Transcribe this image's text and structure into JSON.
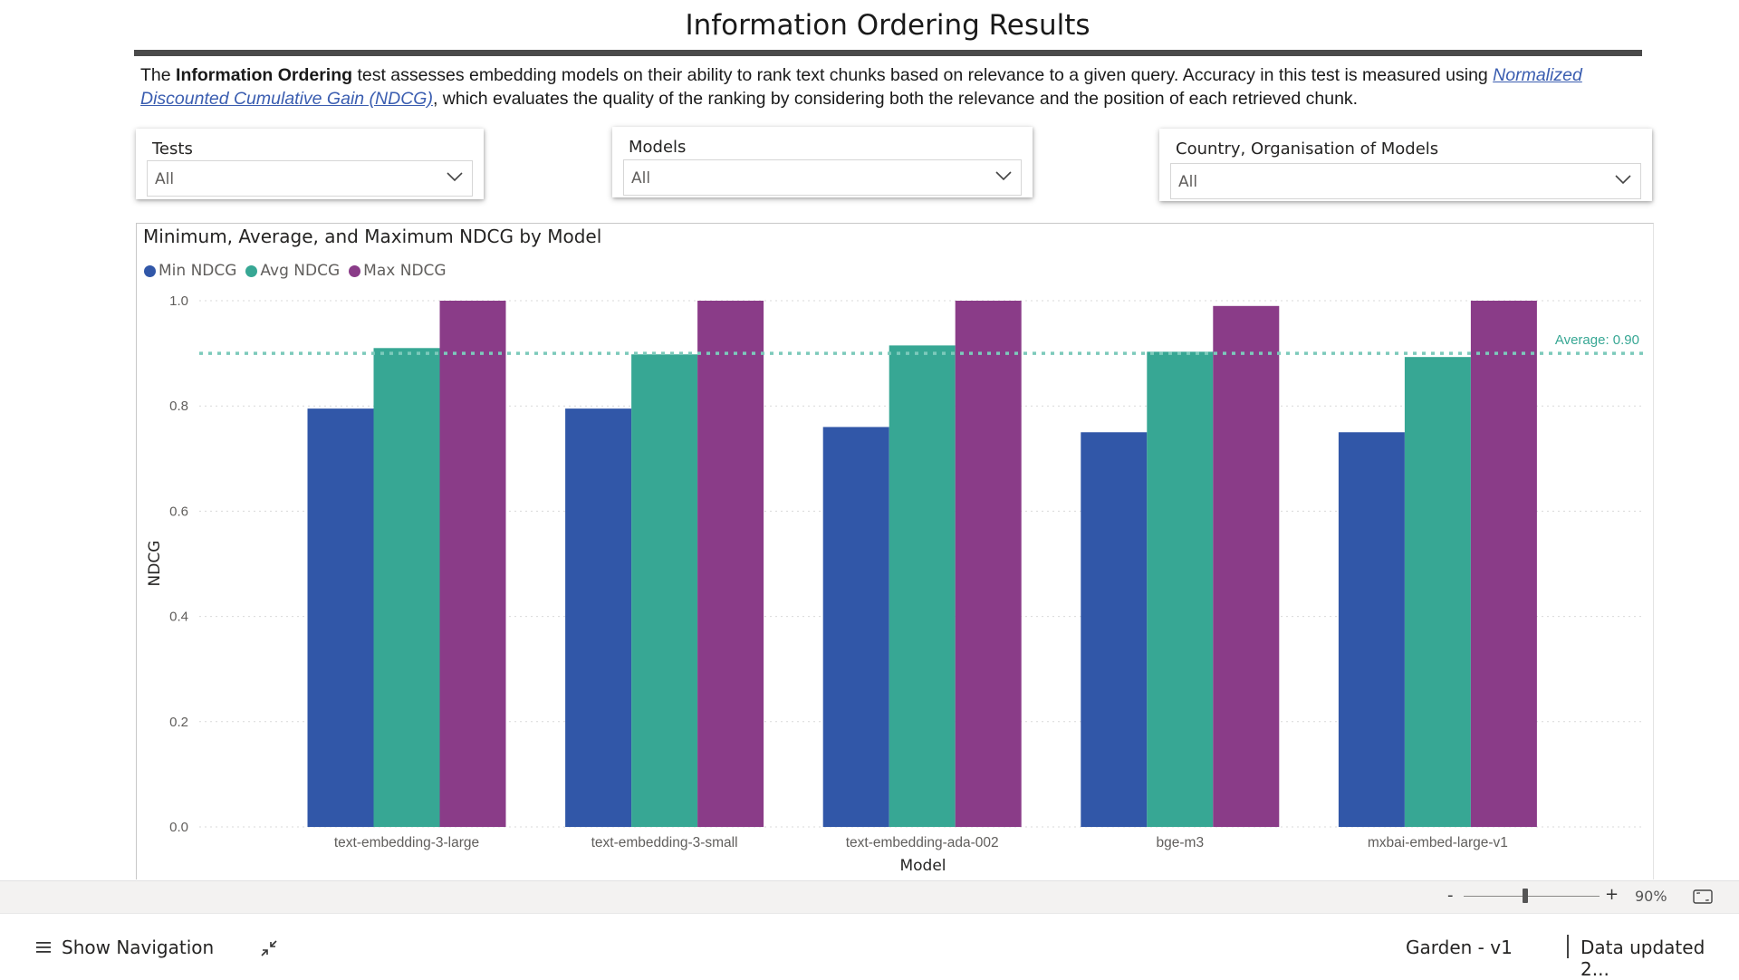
{
  "report": {
    "title": "Information Ordering Results",
    "description": {
      "part1": "The ",
      "bold": "Information Ordering",
      "part2": " test assesses embedding models on their ability to rank text chunks based on relevance to a given query. Accuracy in this test is measured using ",
      "link": "Normalized Discounted Cumulative Gain (NDCG)",
      "part3": ", which evaluates the quality of the ranking by considering both the relevance and the position of each retrieved chunk."
    }
  },
  "slicers": [
    {
      "label": "Tests",
      "value": "All"
    },
    {
      "label": "Models",
      "value": "All"
    },
    {
      "label": "Country, Organisation of Models",
      "value": "All"
    }
  ],
  "chart_data": {
    "type": "bar",
    "title": "Minimum, Average, and Maximum NDCG by Model",
    "xlabel": "Model",
    "ylabel": "NDCG",
    "ylim": [
      0,
      1.0
    ],
    "yticks": [
      "0.0",
      "0.2",
      "0.4",
      "0.6",
      "0.8",
      "1.0"
    ],
    "categories": [
      "text-embedding-3-large",
      "text-embedding-3-small",
      "text-embedding-ada-002",
      "bge-m3",
      "mxbai-embed-large-v1"
    ],
    "series": [
      {
        "name": "Min NDCG",
        "color": "#3157a8",
        "values": [
          0.795,
          0.795,
          0.76,
          0.75,
          0.75
        ]
      },
      {
        "name": "Avg NDCG",
        "color": "#37a794",
        "values": [
          0.91,
          0.898,
          0.915,
          0.903,
          0.893
        ]
      },
      {
        "name": "Max NDCG",
        "color": "#8a3c88",
        "values": [
          1.0,
          1.0,
          1.0,
          0.99,
          1.0
        ]
      }
    ],
    "reference_line": {
      "value": 0.9,
      "label": "Average: 0.90",
      "color": "#7ccabb"
    },
    "grid": true,
    "legend_position": "top-left"
  },
  "zoom": {
    "minus": "-",
    "plus": "+",
    "percent": "90%",
    "level": 0.45
  },
  "bottom_bar": {
    "nav_label": "Show Navigation",
    "workspace": "Garden - v1",
    "data_updated": "Data updated 2..."
  }
}
